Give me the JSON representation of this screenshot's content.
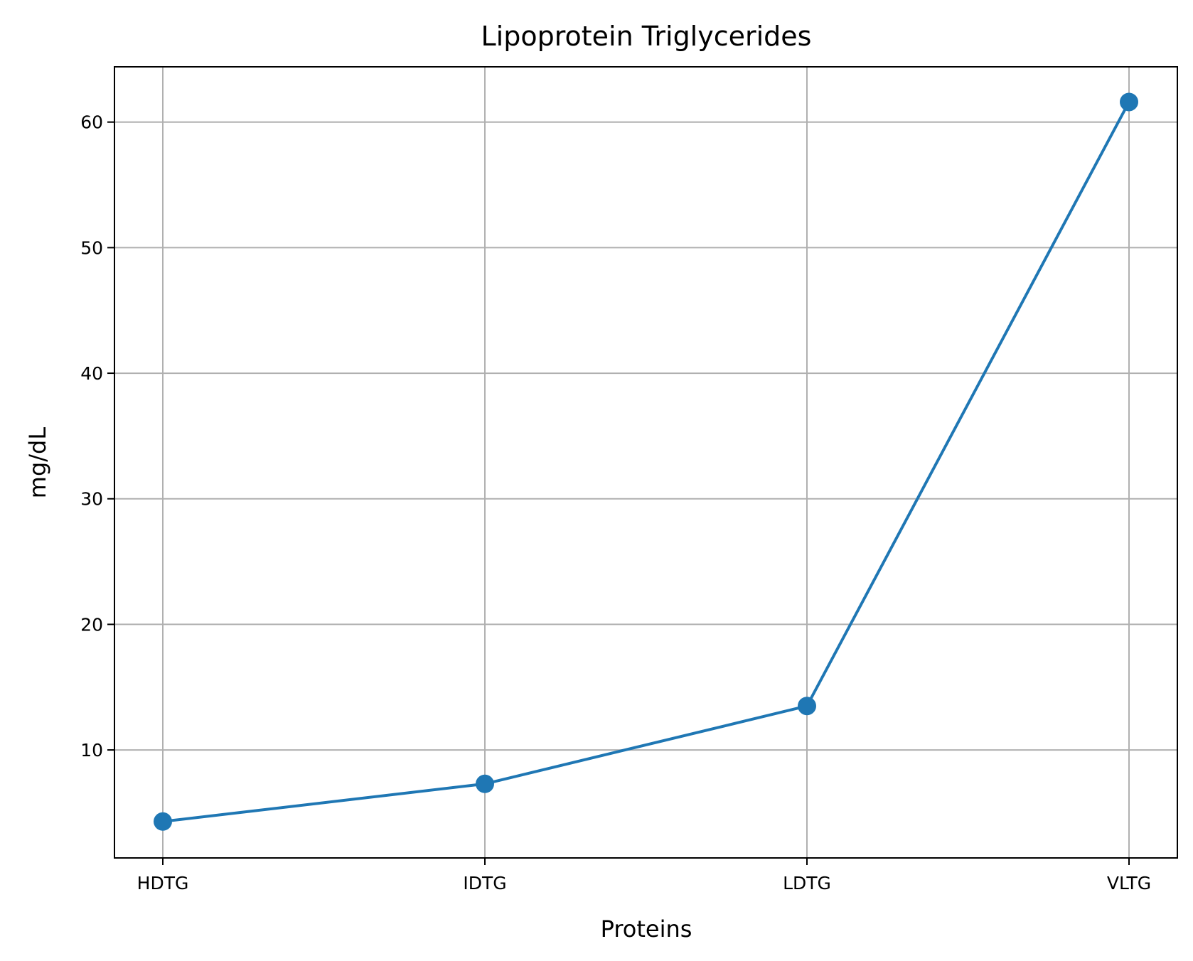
{
  "chart_data": {
    "type": "line",
    "title": "Lipoprotein Triglycerides",
    "xlabel": "Proteins",
    "ylabel": "mg/dL",
    "categories": [
      "HDTG",
      "IDTG",
      "LDTG",
      "VLTG"
    ],
    "series": [
      {
        "values": [
          4.3,
          7.3,
          13.5,
          61.6
        ],
        "color": "#1f77b4",
        "marker": "circle"
      }
    ],
    "ylim": [
      1.4,
      64.4
    ],
    "yticks": [
      10,
      20,
      30,
      40,
      50,
      60
    ],
    "grid": true,
    "legend": "none"
  }
}
